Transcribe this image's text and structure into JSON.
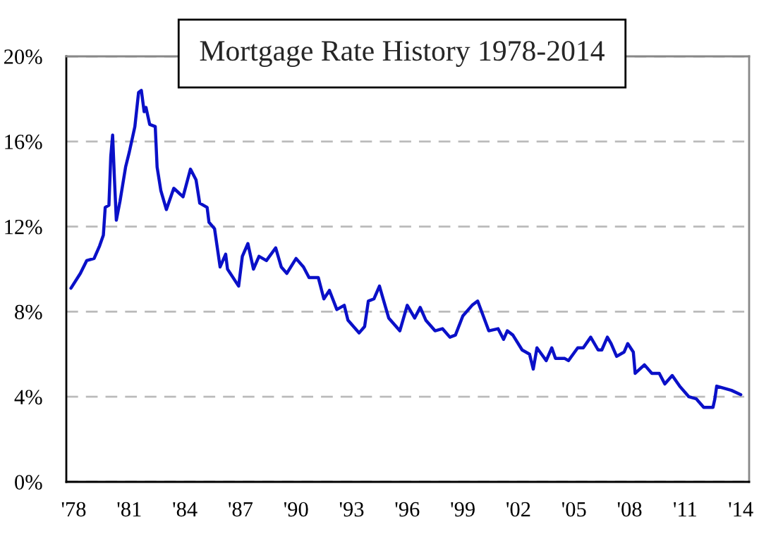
{
  "chart_data": {
    "type": "line",
    "title": "Mortgage Rate History 1978-2014",
    "x": [
      1977.85,
      1978.36,
      1978.7,
      1979.1,
      1979.4,
      1979.6,
      1979.7,
      1979.9,
      1980.0,
      1980.1,
      1980.2,
      1980.3,
      1980.5,
      1980.8,
      1981.0,
      1981.3,
      1981.5,
      1981.65,
      1981.8,
      1981.9,
      1982.1,
      1982.4,
      1982.5,
      1982.7,
      1983.0,
      1983.4,
      1983.9,
      1984.3,
      1984.6,
      1984.8,
      1985.2,
      1985.3,
      1985.6,
      1985.9,
      1986.2,
      1986.3,
      1986.9,
      1987.1,
      1987.4,
      1987.7,
      1988.0,
      1988.4,
      1988.9,
      1989.2,
      1989.5,
      1990.0,
      1990.4,
      1990.7,
      1991.2,
      1991.5,
      1991.8,
      1992.2,
      1992.6,
      1992.8,
      1993.4,
      1993.7,
      1993.9,
      1994.2,
      1994.5,
      1994.7,
      1995.0,
      1995.6,
      1996.0,
      1996.4,
      1996.7,
      1997.0,
      1997.5,
      1997.9,
      1998.3,
      1998.6,
      1999.0,
      1999.5,
      1999.8,
      2000.4,
      2000.9,
      2001.2,
      2001.4,
      2001.7,
      2002.2,
      2002.6,
      2002.8,
      2003.0,
      2003.5,
      2003.8,
      2004.0,
      2004.5,
      2004.7,
      2005.2,
      2005.5,
      2005.9,
      2006.3,
      2006.5,
      2006.8,
      2007.0,
      2007.3,
      2007.7,
      2007.9,
      2008.2,
      2008.3,
      2008.8,
      2009.2,
      2009.6,
      2009.9,
      2010.3,
      2010.7,
      2011.2,
      2011.6,
      2012.0,
      2012.5,
      2012.6,
      2012.7,
      2013.1,
      2013.5,
      2014.0
    ],
    "series": [
      {
        "color": "#0a10c8",
        "values": [
          9.1,
          9.8,
          10.4,
          10.5,
          11.1,
          11.6,
          12.9,
          13.0,
          15.3,
          16.3,
          14.2,
          12.3,
          13.2,
          14.8,
          15.5,
          16.7,
          18.3,
          18.4,
          17.4,
          17.6,
          16.8,
          16.7,
          14.8,
          13.7,
          12.8,
          13.8,
          13.4,
          14.7,
          14.2,
          13.1,
          12.9,
          12.2,
          11.9,
          10.1,
          10.7,
          10.0,
          9.2,
          10.6,
          11.2,
          10.0,
          10.6,
          10.4,
          11.0,
          10.1,
          9.8,
          10.5,
          10.1,
          9.6,
          9.6,
          8.6,
          9.0,
          8.1,
          8.3,
          7.6,
          7.0,
          7.3,
          8.5,
          8.6,
          9.2,
          8.6,
          7.7,
          7.1,
          8.3,
          7.7,
          8.2,
          7.6,
          7.1,
          7.2,
          6.8,
          6.9,
          7.8,
          8.3,
          8.5,
          7.1,
          7.2,
          6.7,
          7.1,
          6.9,
          6.2,
          6.0,
          5.3,
          6.3,
          5.7,
          6.3,
          5.8,
          5.8,
          5.7,
          6.3,
          6.3,
          6.8,
          6.2,
          6.2,
          6.8,
          6.5,
          5.9,
          6.1,
          6.5,
          6.1,
          5.1,
          5.5,
          5.1,
          5.1,
          4.6,
          5.0,
          4.5,
          4.0,
          3.9,
          3.5,
          3.5,
          3.9,
          4.5,
          4.4,
          4.3,
          4.1
        ]
      }
    ],
    "xlim": [
      1977.6,
      2014.45
    ],
    "xticks": [
      {
        "value": 1978,
        "label": "'78"
      },
      {
        "value": 1981,
        "label": "'81"
      },
      {
        "value": 1984,
        "label": "'84"
      },
      {
        "value": 1987,
        "label": "'87"
      },
      {
        "value": 1990,
        "label": "'90"
      },
      {
        "value": 1993,
        "label": "'93"
      },
      {
        "value": 1996,
        "label": "'96"
      },
      {
        "value": 1999,
        "label": "'99"
      },
      {
        "value": 2002,
        "label": "'02"
      },
      {
        "value": 2005,
        "label": "'05"
      },
      {
        "value": 2008,
        "label": "'08"
      },
      {
        "value": 2011,
        "label": "'11"
      },
      {
        "value": 2014,
        "label": "'14"
      }
    ],
    "ylim": [
      0,
      20
    ],
    "yticks": [
      {
        "value": 0,
        "label": "0%"
      },
      {
        "value": 4,
        "label": "4%"
      },
      {
        "value": 8,
        "label": "8%"
      },
      {
        "value": 12,
        "label": "12%"
      },
      {
        "value": 16,
        "label": "16%"
      },
      {
        "value": 20,
        "label": "20%"
      }
    ],
    "grid": "y",
    "marker": "none",
    "line_style": "solid",
    "legend": false
  }
}
